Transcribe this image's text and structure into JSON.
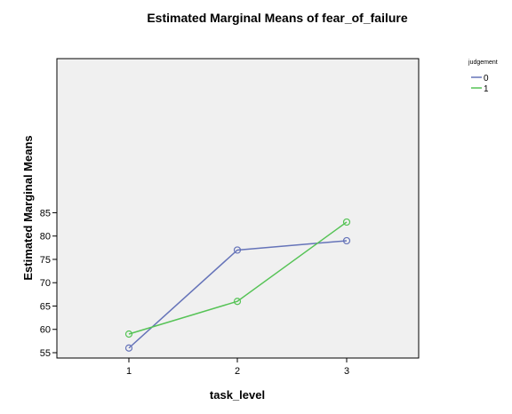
{
  "chart_data": {
    "type": "line",
    "title": "Estimated Marginal Means of fear_of_failure",
    "xlabel": "task_level",
    "ylabel": "Estimated Marginal Means",
    "categories": [
      "1",
      "2",
      "3"
    ],
    "ylim": [
      54,
      86
    ],
    "yticks": [
      55,
      60,
      65,
      70,
      75,
      80,
      85
    ],
    "grid": false,
    "legend": {
      "title": "judgement",
      "placement": "right"
    },
    "series": [
      {
        "name": "0",
        "color": "#6674b9",
        "values": [
          56,
          77,
          79
        ]
      },
      {
        "name": "1",
        "color": "#56c356",
        "values": [
          59,
          66,
          83
        ]
      }
    ]
  }
}
